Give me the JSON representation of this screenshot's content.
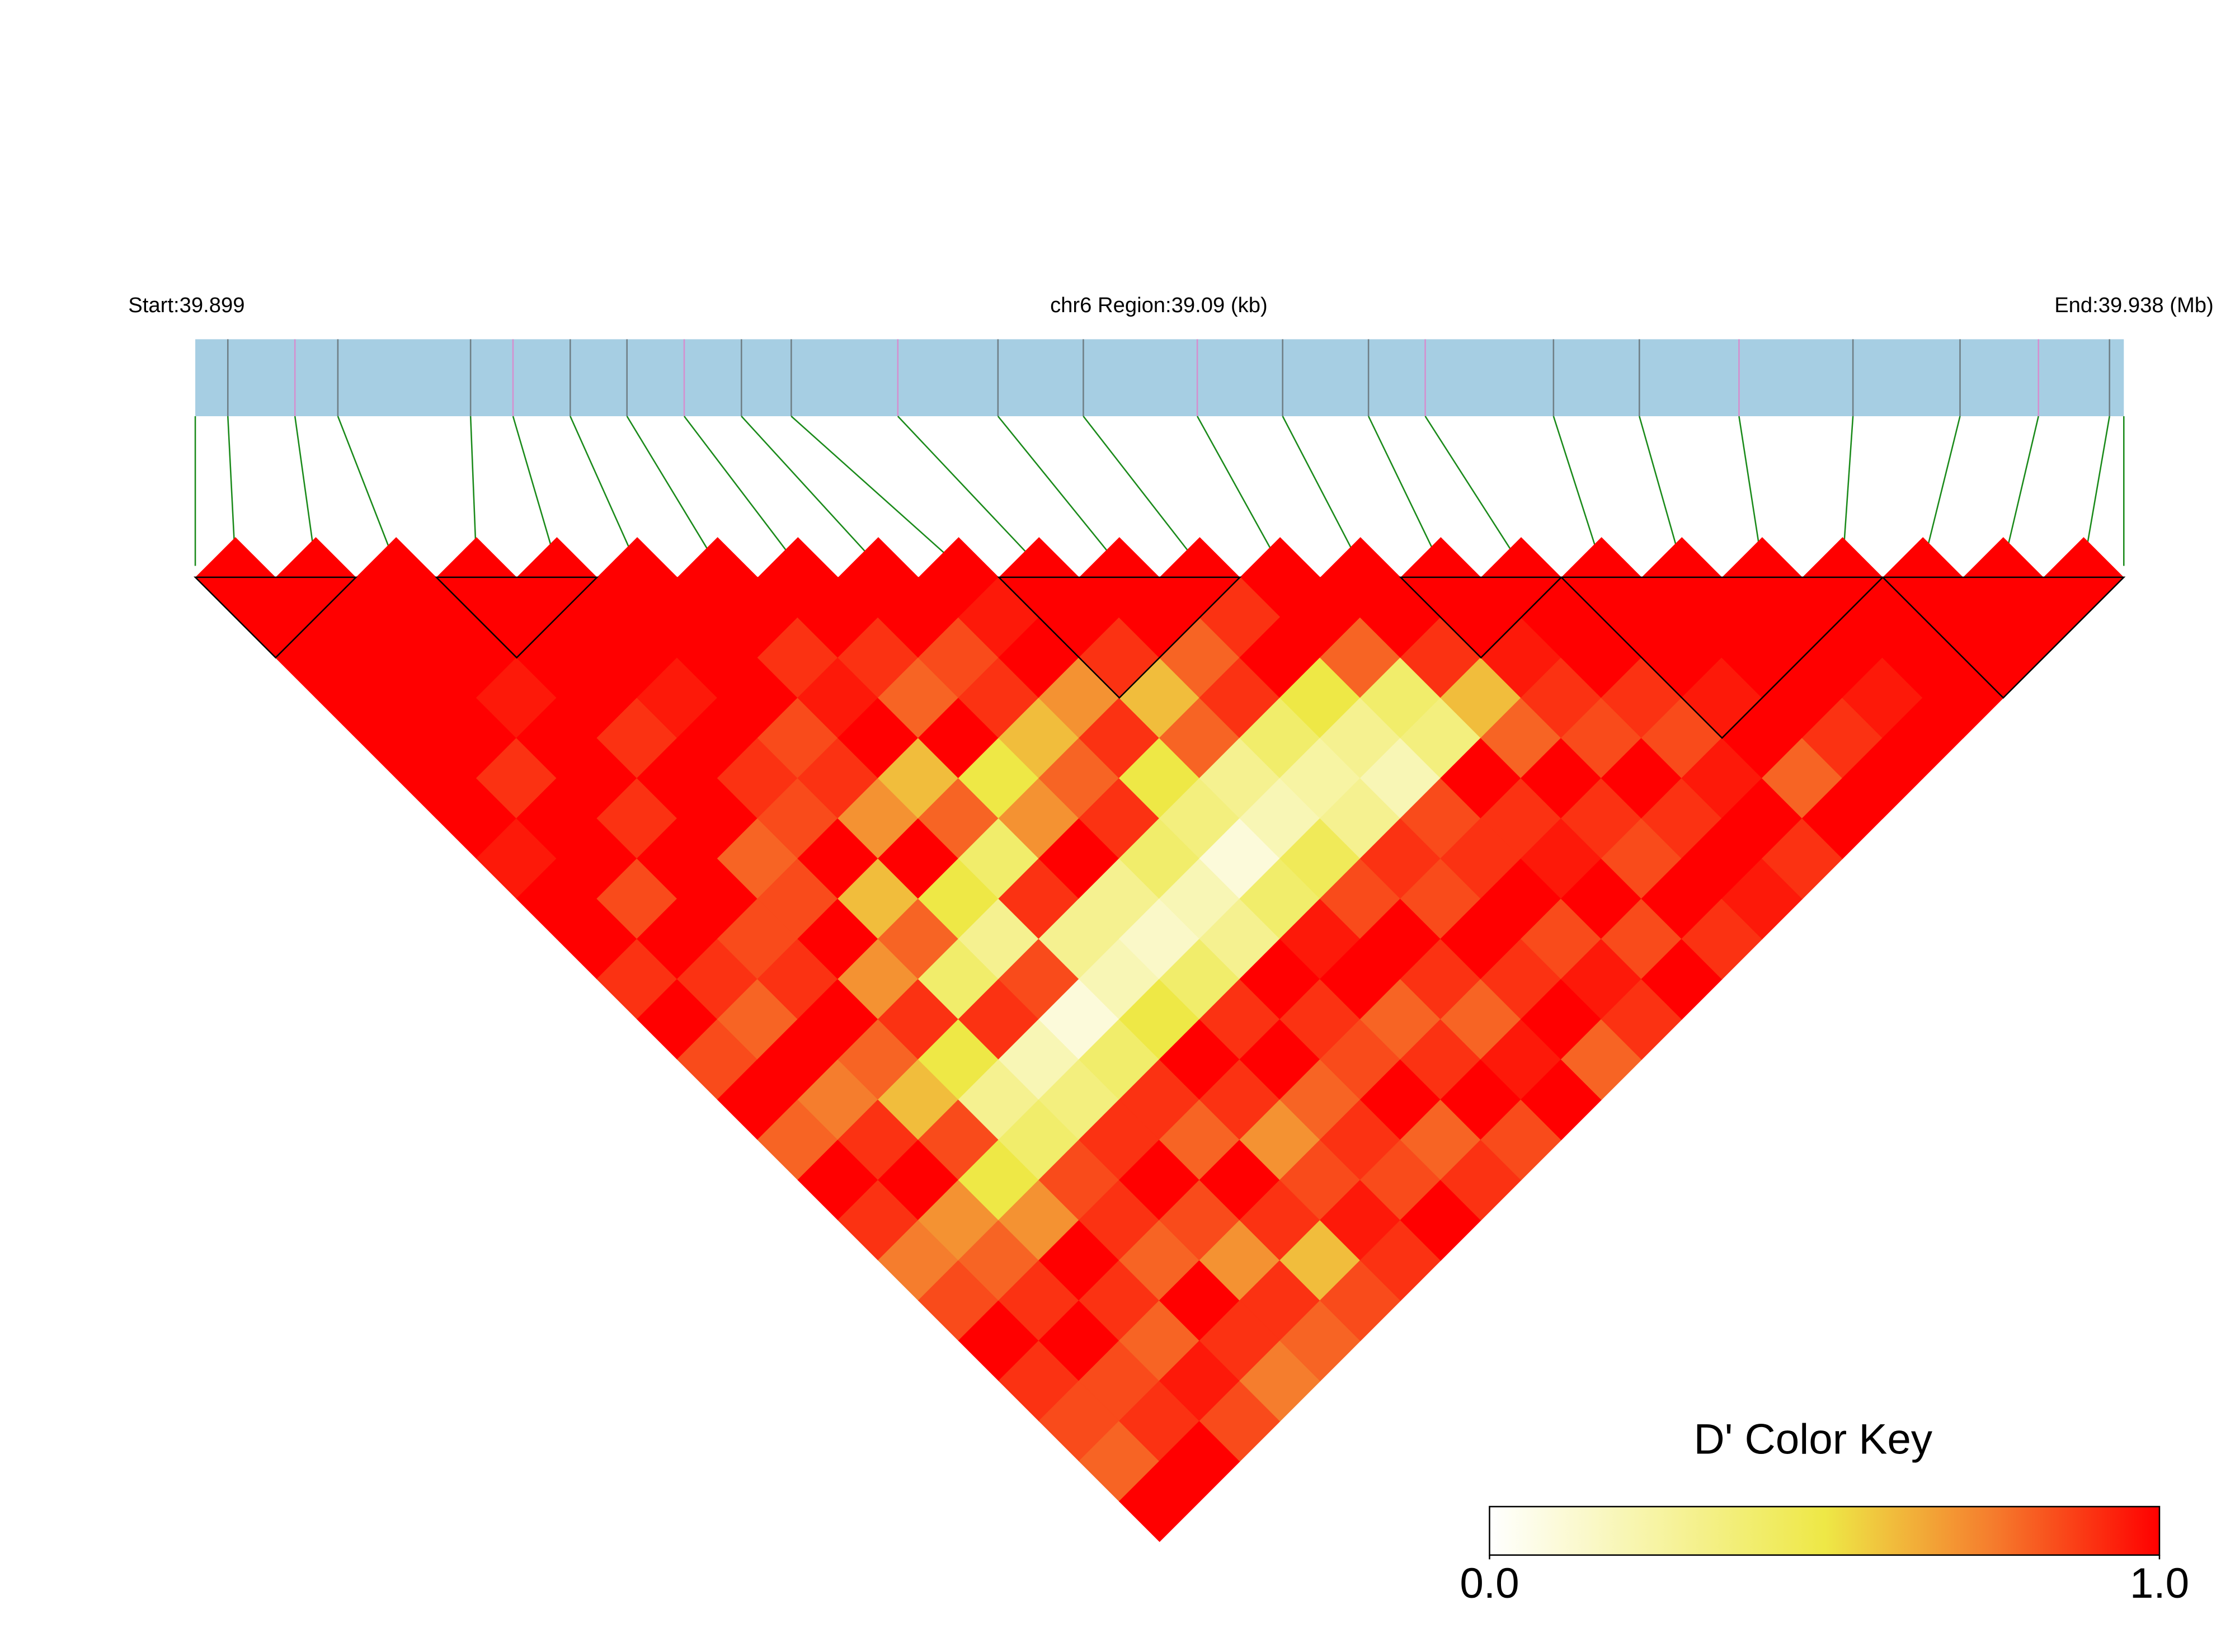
{
  "chart_data": {
    "type": "ld_heatmap",
    "start_label": "Start:39.899",
    "title": "chr6 Region:39.09 (kb)",
    "end_label": "End:39.938 (Mb)",
    "xlim": [
      0,
      39.09
    ],
    "snp_positions": [
      0.66,
      2.02,
      2.89,
      5.58,
      6.44,
      7.6,
      8.75,
      9.91,
      11.07,
      12.08,
      14.24,
      16.27,
      18.0,
      20.31,
      22.04,
      23.78,
      24.93,
      27.53,
      29.27,
      31.29,
      33.6,
      35.77,
      37.36,
      38.8
    ],
    "dprime": [
      [
        1,
        1,
        1,
        1,
        1,
        1,
        0.95,
        1,
        1,
        0.9,
        1,
        0.85,
        1,
        0.8,
        1,
        0.9,
        0.75,
        0.85,
        1,
        0.9,
        0.85,
        0.8,
        1
      ],
      [
        1,
        1,
        1,
        1,
        0.9,
        1,
        1,
        0.85,
        1,
        0.9,
        0.8,
        1,
        0.75,
        0.9,
        1,
        0.7,
        0.8,
        0.9,
        1,
        0.85,
        0.9,
        1
      ],
      [
        1,
        1,
        0.95,
        1,
        1,
        0.9,
        1,
        1,
        0.85,
        0.9,
        1,
        0.8,
        0.6,
        0.85,
        0.5,
        0.7,
        1,
        0.9,
        0.8,
        0.95,
        0.85
      ],
      [
        1,
        1,
        1,
        0.9,
        1,
        1,
        0.8,
        0.85,
        1,
        0.7,
        0.9,
        0.5,
        0.3,
        0.4,
        0.85,
        0.9,
        0.8,
        1,
        0.9,
        0.75
      ],
      [
        1,
        1,
        0.95,
        1,
        0.9,
        0.85,
        1,
        0.6,
        0.8,
        0.4,
        0.9,
        0.2,
        0.35,
        0.9,
        1,
        0.85,
        0.7,
        0.9,
        0.8
      ],
      [
        1,
        1,
        1,
        0.85,
        0.9,
        0.7,
        1,
        0.5,
        0.3,
        0.85,
        0.1,
        0.4,
        0.9,
        0.8,
        1,
        0.9,
        0.6,
        0.85
      ],
      [
        1,
        0.9,
        0.95,
        1,
        0.6,
        0.8,
        0.4,
        0.9,
        0.3,
        0.2,
        0.5,
        1,
        0.9,
        0.7,
        0.85,
        0.95,
        0.9
      ],
      [
        1,
        0.9,
        0.8,
        1,
        0.5,
        0.7,
        1,
        0.3,
        0.15,
        0.4,
        0.9,
        1,
        0.8,
        0.9,
        0.85,
        1
      ],
      [
        1,
        0.85,
        0.9,
        0.6,
        0.8,
        0.9,
        0.4,
        0.2,
        0.3,
        1,
        0.9,
        0.85,
        1,
        0.8,
        0.9
      ],
      [
        0.95,
        1,
        0.7,
        0.9,
        0.5,
        0.35,
        0.1,
        0.4,
        0.95,
        1,
        0.8,
        0.9,
        1,
        0.85
      ],
      [
        1,
        0.9,
        0.6,
        0.8,
        0.3,
        0.2,
        0.45,
        0.85,
        1,
        0.9,
        0.8,
        0.95,
        1
      ],
      [
        1,
        0.8,
        0.9,
        0.4,
        0.25,
        0.3,
        0.9,
        0.85,
        1,
        0.9,
        1,
        0.8
      ],
      [
        0.9,
        1,
        0.5,
        0.3,
        0.2,
        0.85,
        0.9,
        1,
        0.85,
        0.95,
        0.9
      ],
      [
        1,
        0.8,
        0.4,
        0.35,
        1,
        0.9,
        0.95,
        1,
        0.85,
        1
      ],
      [
        1,
        0.9,
        0.6,
        0.8,
        1,
        0.9,
        0.85,
        1,
        0.9
      ],
      [
        1,
        0.95,
        0.9,
        0.85,
        1,
        0.9,
        1,
        0.95
      ],
      [
        1,
        1,
        0.9,
        0.85,
        0.95,
        1,
        0.9
      ],
      [
        1,
        1,
        0.95,
        1,
        0.8,
        1
      ],
      [
        1,
        1,
        1,
        0.9,
        1
      ],
      [
        1,
        1,
        0.95,
        1
      ],
      [
        1,
        1,
        1
      ],
      [
        1,
        1
      ],
      [
        1
      ]
    ],
    "blocks": [
      [
        0,
        1
      ],
      [
        3,
        4
      ],
      [
        10,
        12
      ],
      [
        15,
        16
      ],
      [
        17,
        20
      ],
      [
        21,
        23
      ]
    ],
    "colorbar": {
      "title": "D' Color Key",
      "lim": [
        0,
        1
      ],
      "ticks": [
        {
          "value": 0,
          "label": "0.0"
        },
        {
          "value": 1,
          "label": "1.0"
        }
      ]
    }
  }
}
